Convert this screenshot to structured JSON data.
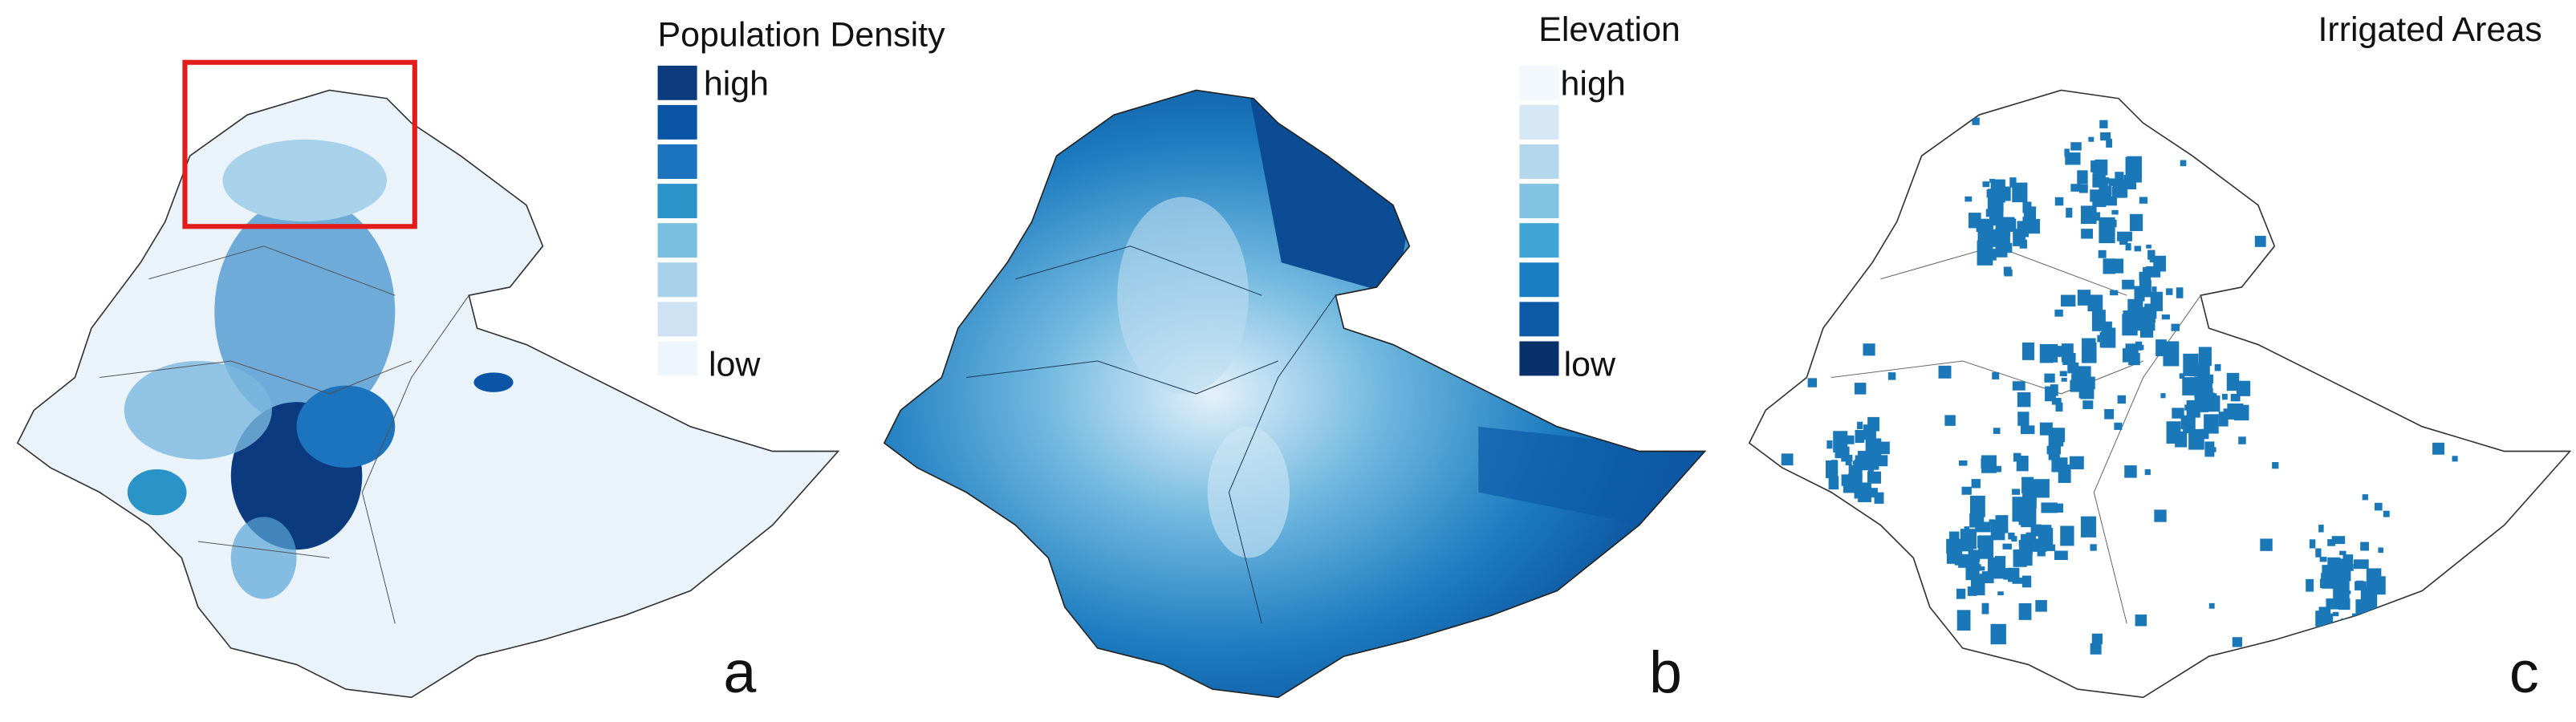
{
  "panels": [
    {
      "title": "Population Density",
      "legend": {
        "high": "high",
        "low": "low",
        "colors": [
          "#0b3b7e",
          "#0a55a6",
          "#1c73be",
          "#2a93c8",
          "#79bfe0",
          "#a8d1ea",
          "#cfe2f3",
          "#eef5fc"
        ]
      },
      "letter": "a"
    },
    {
      "title": "Elevation",
      "legend": {
        "high": "high",
        "low": "low",
        "colors": [
          "#f3f8fd",
          "#d6e8f5",
          "#b4d7ee",
          "#82c2e3",
          "#3fa6d5",
          "#1a7fc2",
          "#0d5aa7",
          "#08306b"
        ]
      },
      "letter": "b"
    },
    {
      "title": "Irrigated Areas",
      "letter": "c"
    }
  ]
}
